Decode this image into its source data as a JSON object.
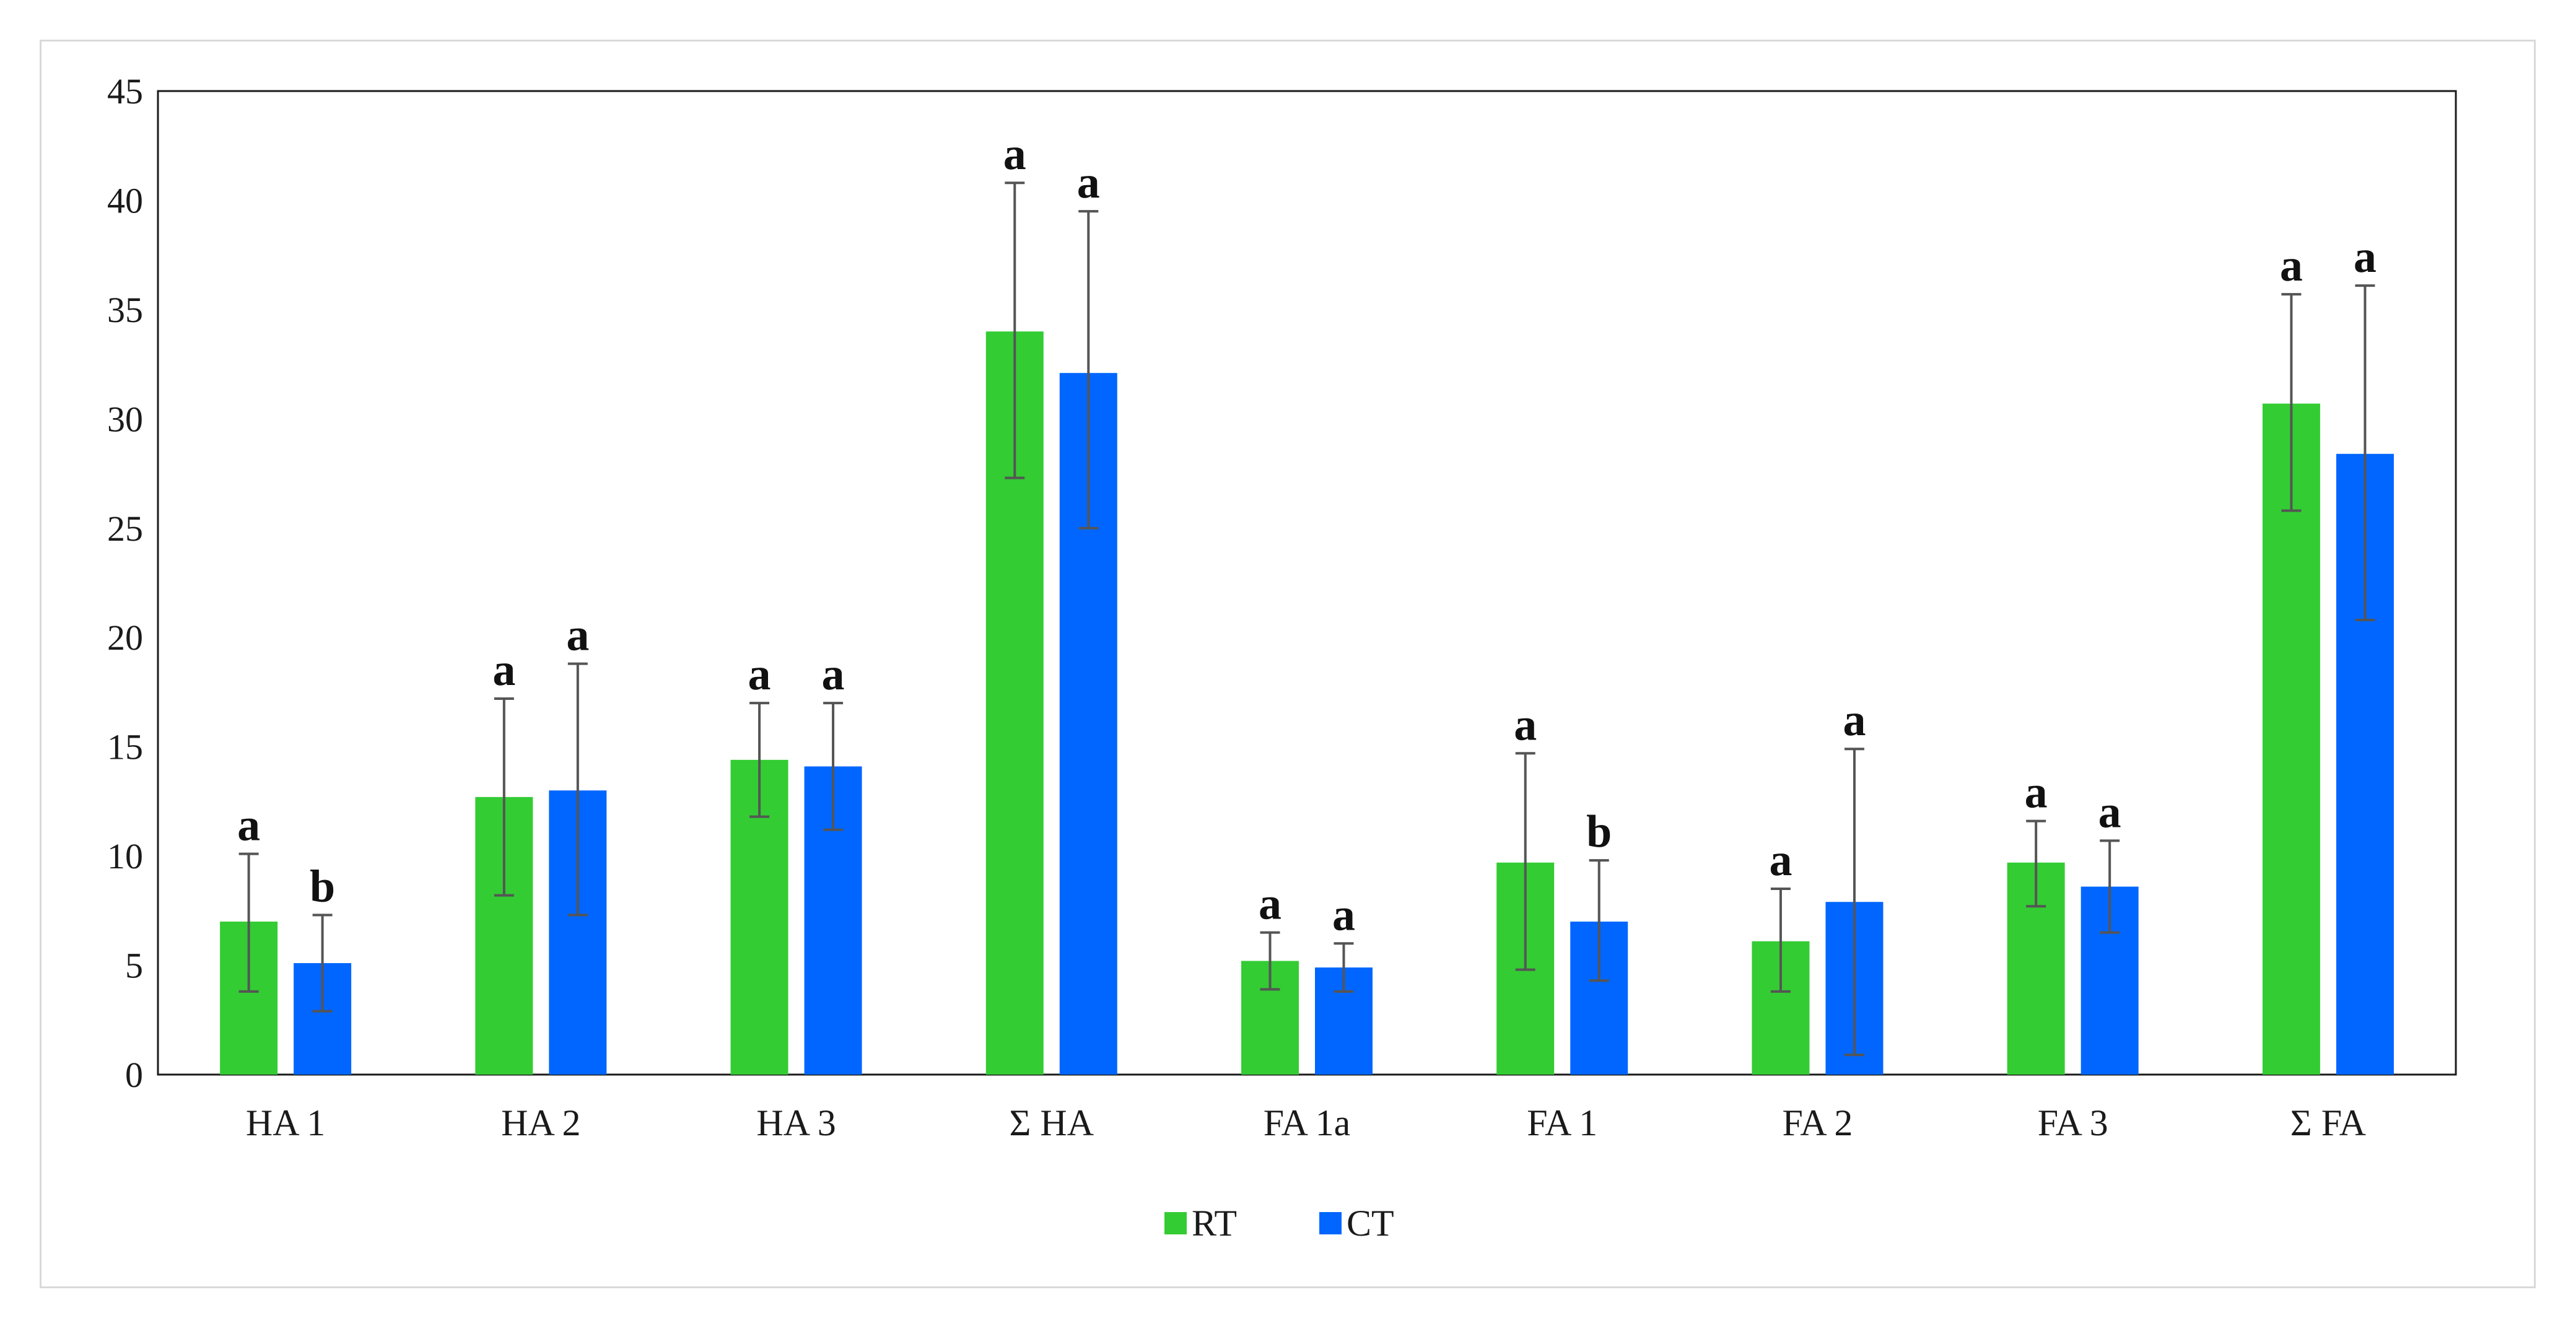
{
  "chart_data": {
    "type": "bar",
    "title": "",
    "xlabel": "",
    "ylabel": "",
    "ylim": [
      0,
      45
    ],
    "yticks": [
      0,
      5,
      10,
      15,
      20,
      25,
      30,
      35,
      40,
      45
    ],
    "grid": false,
    "legend_position": "bottom-center",
    "categories": [
      "HA 1",
      "HA 2",
      "HA 3",
      "Σ HA",
      "FA 1a",
      "FA 1",
      "FA 2",
      "FA 3",
      "Σ FA"
    ],
    "series": [
      {
        "name": "RT",
        "color": "#33cc33",
        "values": [
          7.0,
          12.7,
          14.4,
          34.0,
          5.2,
          9.7,
          6.1,
          9.7,
          30.7
        ],
        "error_low": [
          3.8,
          8.2,
          11.8,
          27.3,
          3.9,
          4.8,
          3.8,
          7.7,
          25.8
        ],
        "error_high": [
          10.1,
          17.2,
          17.0,
          40.8,
          6.5,
          14.7,
          8.5,
          11.6,
          35.7
        ],
        "significance": [
          "a",
          "a",
          "a",
          "a",
          "a",
          "a",
          "a",
          "a",
          "a"
        ]
      },
      {
        "name": "CT",
        "color": "#0066ff",
        "values": [
          5.1,
          13.0,
          14.1,
          32.1,
          4.9,
          7.0,
          7.9,
          8.6,
          28.4
        ],
        "error_low": [
          2.9,
          7.3,
          11.2,
          25.0,
          3.8,
          4.3,
          0.9,
          6.5,
          20.8
        ],
        "error_high": [
          7.3,
          18.8,
          17.0,
          39.5,
          6.0,
          9.8,
          14.9,
          10.7,
          36.1
        ],
        "significance": [
          "b",
          "a",
          "a",
          "a",
          "a",
          "b",
          "a",
          "a",
          "a"
        ]
      }
    ]
  }
}
